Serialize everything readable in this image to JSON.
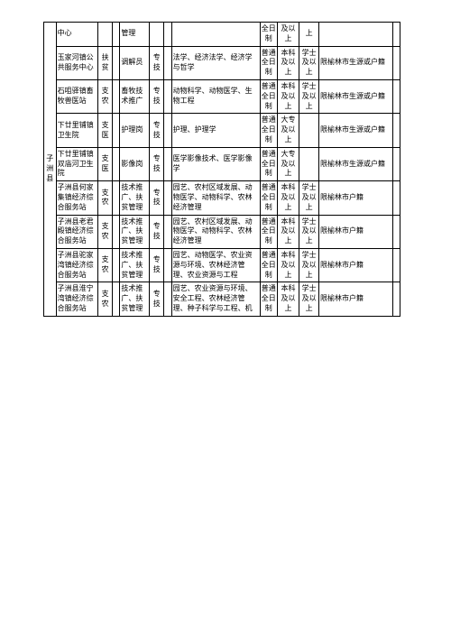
{
  "group_label": "子洲县",
  "rows": [
    {
      "unit": "中心",
      "cls": "",
      "c3": "",
      "job": "管理",
      "zk": "",
      "c6": "",
      "major": "",
      "fmt": "全日制",
      "deg": "及以上",
      "xw": "上",
      "note": "",
      "tail": ""
    },
    {
      "unit": "玉家河镇公共服务中心",
      "cls": "扶贫",
      "c3": "",
      "job": "调解员",
      "zk": "专技",
      "c6": "",
      "major": "法学、经济法学、经济学与哲学",
      "fmt": "普通全日制",
      "deg": "本科及以上",
      "xw": "学士及以上",
      "note": "限榆林市生源或户籍",
      "tail": ""
    },
    {
      "unit": "石咀驿镇畜牧兽医站",
      "cls": "支农",
      "c3": "",
      "job": "畜牧技术推广",
      "zk": "专技",
      "c6": "",
      "major": "动物科学、动物医学、生物工程",
      "fmt": "普通全日制",
      "deg": "本科及以上",
      "xw": "学士及以上",
      "note": "限榆林市生源或户籍",
      "tail": ""
    },
    {
      "unit": "下廿里铺镇卫生院",
      "cls": "支医",
      "c3": "",
      "job": "护理岗",
      "zk": "专技",
      "c6": "",
      "major": "护理、护理学",
      "fmt": "普通全日制",
      "deg": "大专及以上",
      "xw": "",
      "note": "限榆林市生源或户籍",
      "tail": ""
    },
    {
      "unit": "下廿里铺镇双庙河卫生院",
      "cls": "支医",
      "c3": "",
      "job": "影像岗",
      "zk": "专技",
      "c6": "",
      "major": "医学影像技术、医学影像学",
      "fmt": "普通全日制",
      "deg": "大专及以上",
      "xw": "",
      "note": "限榆林市生源或户籍",
      "tail": ""
    },
    {
      "unit": "子洲县何家集镇经济综合服务站",
      "cls": "支农",
      "c3": "",
      "job": "技术推广、扶贫管理",
      "zk": "专技",
      "c6": "",
      "major": "园艺、农村区域发展、动物医学、动物科学、农林经济管理",
      "fmt": "普通全日制",
      "deg": "本科及以上",
      "xw": "学士及以上",
      "note": "限榆林市户籍",
      "tail": ""
    },
    {
      "unit": "子洲县老君殿镇经济综合服务站",
      "cls": "支农",
      "c3": "",
      "job": "技术推广、扶贫管理",
      "zk": "专技",
      "c6": "",
      "major": "园艺、农村区域发展、动物医学、动物科学、农林经济管理",
      "fmt": "普通全日制",
      "deg": "本科及以上",
      "xw": "学士及以上",
      "note": "限榆林市户籍",
      "tail": ""
    },
    {
      "unit": "子洲县驼家湾镇经济综合服务站",
      "cls": "支农",
      "c3": "",
      "job": "技术推广、扶贫管理",
      "zk": "专技",
      "c6": "",
      "major": "园艺、动物医学、农业资源与环境、农林经济管理、农业资源与工程",
      "fmt": "普通全日制",
      "deg": "本科及以上",
      "xw": "学士及以上",
      "note": "限榆林市户籍",
      "tail": ""
    },
    {
      "unit": "子洲县淮宁湾镇经济综合服务站",
      "cls": "支农",
      "c3": "",
      "job": "技术推广、扶贫管理",
      "zk": "专技",
      "c6": "",
      "major": "园艺、农业资源与环境、安全工程、农林经济管理、种子科学与工程、机",
      "fmt": "普通全日制",
      "deg": "本科及以上",
      "xw": "学士及以上",
      "note": "限榆林市户籍",
      "tail": ""
    }
  ]
}
